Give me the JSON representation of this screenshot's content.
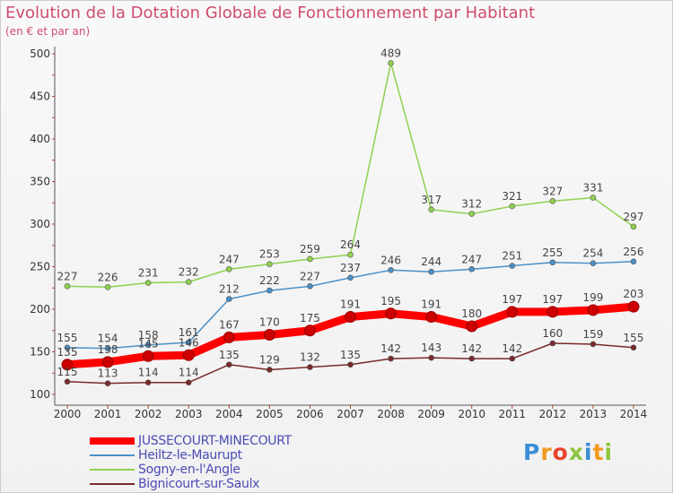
{
  "chart_data": {
    "type": "line",
    "title": "Evolution de la Dotation Globale de Fonctionnement par Habitant",
    "subtitle": "(en € et par an)",
    "x": [
      "2000",
      "2001",
      "2002",
      "2003",
      "2004",
      "2005",
      "2006",
      "2007",
      "2008",
      "2009",
      "2010",
      "2011",
      "2012",
      "2013",
      "2014"
    ],
    "ylim": [
      100,
      500
    ],
    "yticks": [
      "100",
      "150",
      "200",
      "250",
      "300",
      "350",
      "400",
      "450",
      "500"
    ],
    "grid": false,
    "legend_position": "bottom-left",
    "series": [
      {
        "name": "JUSSECOURT-MINECOURT",
        "color": "#ff0000",
        "values": [
          135,
          138,
          145,
          146,
          167,
          170,
          175,
          191,
          195,
          191,
          180,
          197,
          197,
          199,
          203
        ],
        "labels": [
          "135",
          "138",
          "145",
          "146",
          "167",
          "170",
          "175",
          "191",
          "195",
          "191",
          "180",
          "197",
          "197",
          "199",
          "203"
        ]
      },
      {
        "name": "Heiltz-le-Maurupt",
        "color": "#4a90c8",
        "values": [
          155,
          154,
          158,
          161,
          212,
          222,
          227,
          237,
          246,
          244,
          247,
          251,
          255,
          254,
          256
        ],
        "labels": [
          "155",
          "154",
          "158",
          "161",
          "212",
          "222",
          "227",
          "237",
          "246",
          "244",
          "247",
          "251",
          "255",
          "254",
          "256"
        ]
      },
      {
        "name": "Sogny-en-l'Angle",
        "color": "#8fd14f",
        "values": [
          227,
          226,
          231,
          232,
          247,
          253,
          259,
          264,
          489,
          317,
          312,
          321,
          327,
          331,
          297
        ],
        "labels": [
          "227",
          "226",
          "231",
          "232",
          "247",
          "253",
          "259",
          "264",
          "489",
          "317",
          "312",
          "321",
          "327",
          "331",
          "297"
        ]
      },
      {
        "name": "Bignicourt-sur-Saulx",
        "color": "#7a2a2a",
        "values": [
          115,
          113,
          114,
          114,
          135,
          129,
          132,
          135,
          142,
          143,
          142,
          142,
          160,
          159,
          155
        ],
        "labels": [
          "115",
          "113",
          "114",
          "114",
          "135",
          "129",
          "132",
          "135",
          "142",
          "143",
          "142",
          "142",
          "160",
          "159",
          "155"
        ]
      }
    ]
  },
  "logo": {
    "letters": [
      "P",
      "r",
      "o",
      "x",
      "i",
      "t",
      "i"
    ],
    "colors": [
      "#3c8dd6",
      "#f29a1f",
      "#e8462c",
      "#8cc63f",
      "#3c8dd6",
      "#f29a1f",
      "#8cc63f"
    ]
  }
}
